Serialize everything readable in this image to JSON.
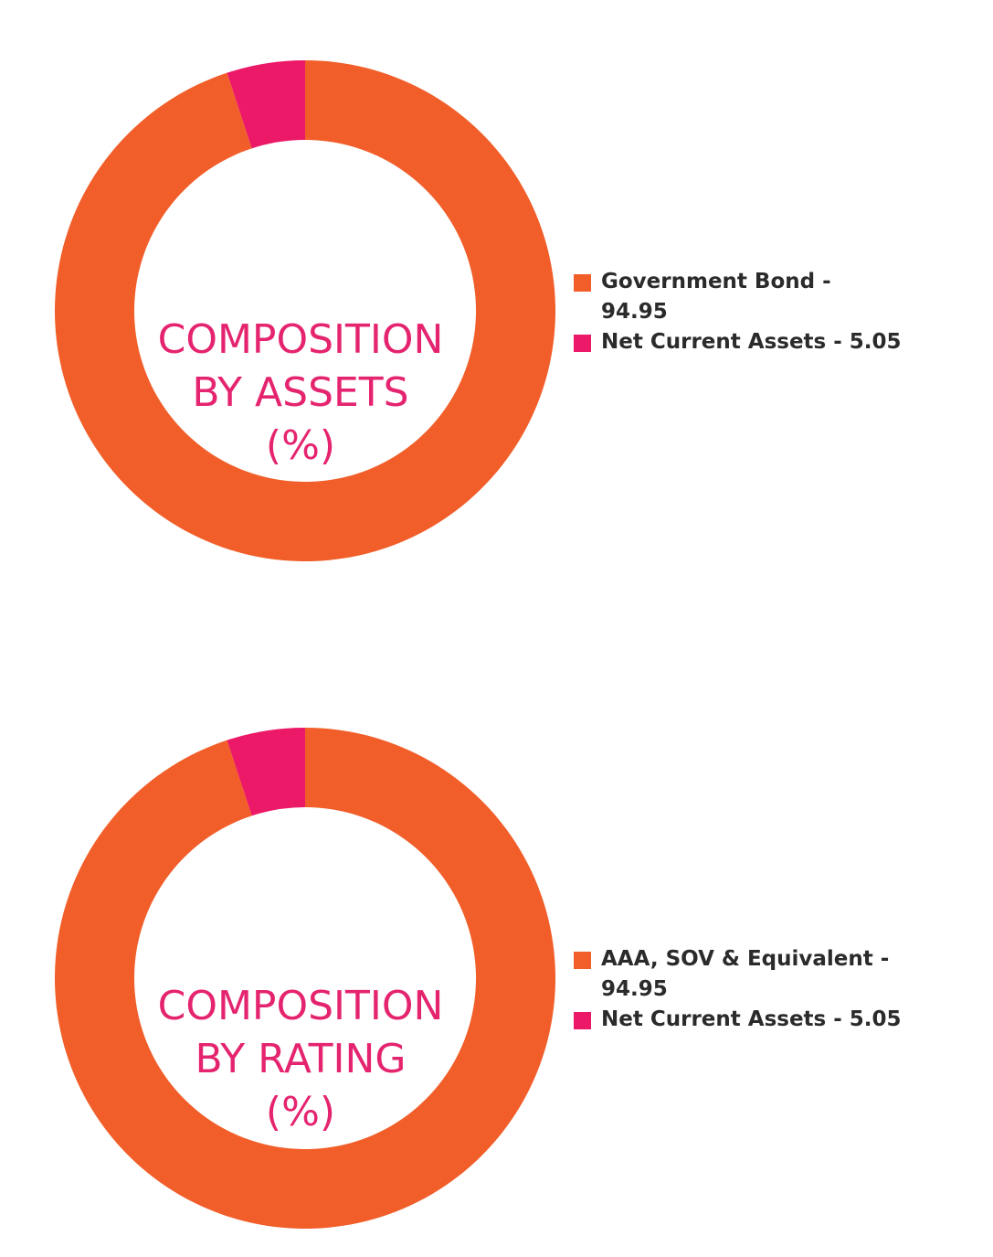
{
  "chart_data": [
    {
      "type": "pie",
      "title": "COMPOSITION BY ASSETS (%)",
      "title_lines": [
        "COMPOSITION",
        "BY ASSETS",
        "(%)"
      ],
      "categories": [
        "Government Bond",
        "Net Current Assets"
      ],
      "values": [
        94.95,
        5.05
      ],
      "legend_labels": [
        "Government Bond - 94.95",
        "Net Current Assets - 5.05"
      ],
      "colors": [
        "#f15e29",
        "#ec1868"
      ],
      "legend": "right"
    },
    {
      "type": "pie",
      "title": "COMPOSITION BY RATING (%)",
      "title_lines": [
        "COMPOSITION",
        "BY RATING",
        "(%)"
      ],
      "categories": [
        "AAA, SOV & Equivalent",
        "Net Current Assets"
      ],
      "values": [
        94.95,
        5.05
      ],
      "legend_labels": [
        "AAA, SOV & Equivalent - 94.95",
        "Net Current Assets - 5.05"
      ],
      "colors": [
        "#f15e29",
        "#ec1868"
      ],
      "legend": "right"
    }
  ]
}
